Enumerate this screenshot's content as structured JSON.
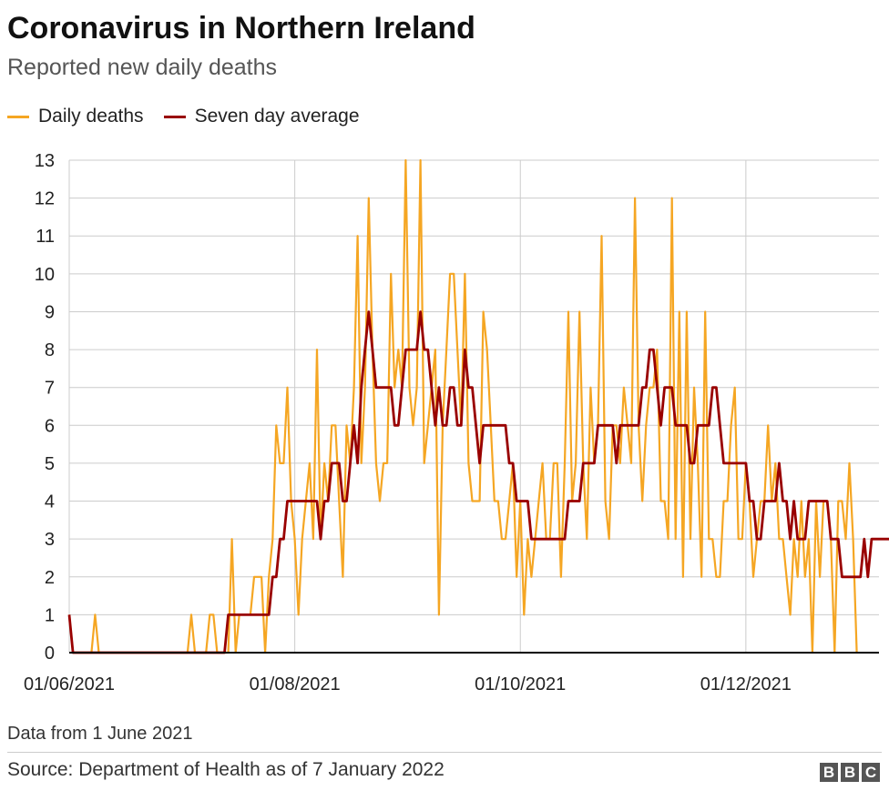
{
  "header": {
    "title": "Coronavirus in Northern Ireland",
    "subtitle": "Reported new daily deaths"
  },
  "footer": {
    "note": "Data from 1 June 2021",
    "source": "Source: Department of Health as of 7 January 2022",
    "logo_letters": [
      "B",
      "B",
      "C"
    ]
  },
  "colors": {
    "daily": "#f5a623",
    "average": "#990000",
    "grid": "#cccccc",
    "axis": "#000000"
  },
  "chart_data": {
    "type": "line",
    "x_start": "2021-06-01",
    "x_end": "2022-01-06",
    "x_ticks": [
      "01/06/2021",
      "01/08/2021",
      "01/10/2021",
      "01/12/2021"
    ],
    "y_ticks": [
      0,
      1,
      2,
      3,
      4,
      5,
      6,
      7,
      8,
      9,
      10,
      11,
      12,
      13
    ],
    "ylim": [
      0,
      13
    ],
    "grid": true,
    "legend_position": "top-left",
    "series": [
      {
        "name": "Daily deaths",
        "values": [
          1,
          0,
          0,
          0,
          0,
          0,
          0,
          1,
          0,
          0,
          0,
          0,
          0,
          0,
          0,
          0,
          0,
          0,
          0,
          0,
          0,
          0,
          0,
          0,
          0,
          0,
          0,
          0,
          0,
          0,
          0,
          0,
          0,
          1,
          0,
          0,
          0,
          0,
          1,
          1,
          0,
          0,
          0,
          0,
          3,
          0,
          1,
          1,
          1,
          1,
          2,
          2,
          2,
          0,
          2,
          3,
          6,
          5,
          5,
          7,
          4,
          3,
          1,
          3,
          4,
          5,
          3,
          8,
          3,
          5,
          4,
          6,
          6,
          4,
          2,
          6,
          5,
          7,
          11,
          5,
          7,
          12,
          8,
          5,
          4,
          5,
          5,
          10,
          7,
          8,
          7,
          13,
          7,
          6,
          7,
          13,
          5,
          6,
          7,
          8,
          1,
          6,
          8,
          10,
          10,
          8,
          6,
          10,
          5,
          4,
          4,
          4,
          9,
          8,
          6,
          4,
          4,
          3,
          3,
          4,
          5,
          2,
          4,
          1,
          3,
          2,
          3,
          4,
          5,
          3,
          3,
          5,
          5,
          2,
          5,
          9,
          4,
          5,
          9,
          5,
          3,
          7,
          5,
          6,
          11,
          4,
          3,
          6,
          6,
          5,
          7,
          6,
          5,
          12,
          6,
          4,
          6,
          7,
          7,
          8,
          4,
          4,
          3,
          12,
          3,
          9,
          2,
          9,
          3,
          7,
          5,
          2,
          9,
          3,
          3,
          2,
          2,
          4,
          4,
          6,
          7,
          3,
          3,
          5,
          4,
          2,
          3,
          4,
          4,
          6,
          4,
          5,
          3,
          3,
          2,
          1,
          3,
          2,
          4,
          2,
          3,
          0,
          4,
          2,
          4,
          4,
          3,
          0,
          4,
          4,
          3,
          5,
          3,
          0
        ]
      },
      {
        "name": "Seven day average",
        "values": [
          1,
          0,
          0,
          0,
          0,
          0,
          0,
          0,
          0,
          0,
          0,
          0,
          0,
          0,
          0,
          0,
          0,
          0,
          0,
          0,
          0,
          0,
          0,
          0,
          0,
          0,
          0,
          0,
          0,
          0,
          0,
          0,
          0,
          0,
          0,
          0,
          0,
          0,
          0,
          0,
          0,
          0,
          0,
          1,
          1,
          1,
          1,
          1,
          1,
          1,
          1,
          1,
          1,
          1,
          1,
          2,
          2,
          3,
          3,
          4,
          4,
          4,
          4,
          4,
          4,
          4,
          4,
          4,
          3,
          4,
          4,
          5,
          5,
          5,
          4,
          4,
          5,
          6,
          5,
          7,
          8,
          9,
          8,
          7,
          7,
          7,
          7,
          7,
          6,
          6,
          7,
          8,
          8,
          8,
          8,
          9,
          8,
          8,
          7,
          6,
          7,
          6,
          6,
          7,
          7,
          6,
          6,
          8,
          7,
          7,
          6,
          5,
          6,
          6,
          6,
          6,
          6,
          6,
          6,
          5,
          5,
          4,
          4,
          4,
          4,
          3,
          3,
          3,
          3,
          3,
          3,
          3,
          3,
          3,
          3,
          4,
          4,
          4,
          4,
          5,
          5,
          5,
          5,
          6,
          6,
          6,
          6,
          6,
          5,
          6,
          6,
          6,
          6,
          6,
          6,
          7,
          7,
          8,
          8,
          7,
          6,
          7,
          7,
          7,
          6,
          6,
          6,
          6,
          5,
          5,
          6,
          6,
          6,
          6,
          7,
          7,
          6,
          5,
          5,
          5,
          5,
          5,
          5,
          5,
          4,
          4,
          3,
          3,
          4,
          4,
          4,
          4,
          5,
          4,
          4,
          3,
          4,
          3,
          3,
          3,
          4,
          4,
          4,
          4,
          4,
          4,
          3,
          3,
          3,
          2,
          2,
          2,
          2,
          2,
          2,
          3,
          2,
          3,
          3,
          3,
          3,
          3,
          3,
          3,
          3,
          3
        ]
      }
    ]
  }
}
